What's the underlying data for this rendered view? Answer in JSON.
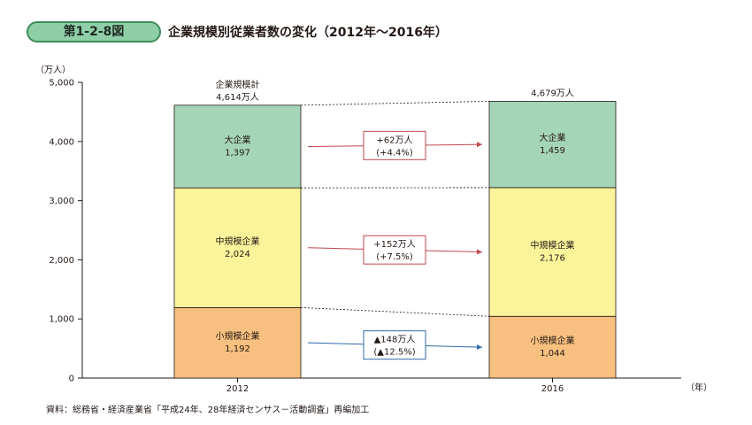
{
  "header": {
    "figure_label": "第1-2-8図",
    "title": "企業規模別従業者数の変化（2012年〜2016年）"
  },
  "chart_data": {
    "type": "bar",
    "stacked": true,
    "categories": [
      "2012",
      "2016"
    ],
    "series": [
      {
        "name": "小規模企業",
        "values": [
          1192,
          1044
        ],
        "labels": [
          "1,192",
          "1,044"
        ],
        "color": "#f8c07f"
      },
      {
        "name": "中規模企業",
        "values": [
          2024,
          2176
        ],
        "labels": [
          "2,024",
          "2,176"
        ],
        "color": "#fbf49b"
      },
      {
        "name": "大企業",
        "values": [
          1397,
          1459
        ],
        "labels": [
          "1,397",
          "1,459"
        ],
        "color": "#a5d5b7"
      }
    ],
    "totals": [
      {
        "line1": "企業規模計",
        "line2": "4,614万人"
      },
      {
        "line1": "",
        "line2": "4,679万人"
      }
    ],
    "changes": [
      {
        "series": "大企業",
        "line1": "+62万人",
        "line2": "(+4.4%)",
        "color": "#c0474e"
      },
      {
        "series": "中規模企業",
        "line1": "+152万人",
        "line2": "(+7.5%)",
        "color": "#c0474e"
      },
      {
        "series": "小規模企業",
        "line1": "▲148万人",
        "line2": "(▲12.5%)",
        "color": "#2f6aa8"
      }
    ],
    "ylabel": "（万人）",
    "xunit": "（年）",
    "ylim": [
      0,
      5000
    ],
    "yticks": [
      0,
      1000,
      2000,
      3000,
      4000,
      5000
    ],
    "ytick_labels": [
      "0",
      "1,000",
      "2,000",
      "3,000",
      "4,000",
      "5,000"
    ],
    "grid": false
  },
  "source": "資料：総務省・経済産業省「平成24年、28年経済センサス－活動調査」再編加工"
}
